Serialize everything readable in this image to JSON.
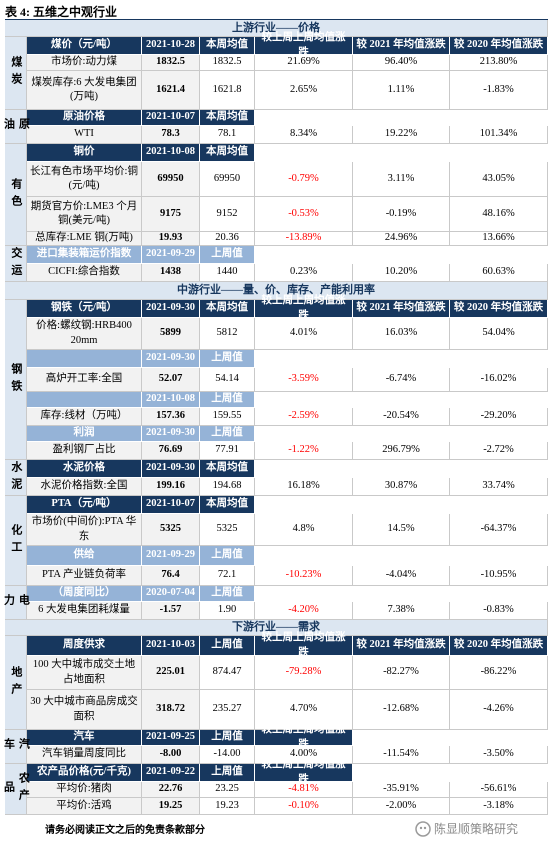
{
  "title": "表 4: 五维之中观行业",
  "negative_color": "#ff0000",
  "table": {
    "sections": [
      {
        "title": "上游行业——价格",
        "groups": [
          {
            "sector": "煤炭",
            "rows": [
              {
                "header": [
                  "煤价（元/吨）",
                  "2021-10-28",
                  "本周均值",
                  "较上周上周均值涨跌",
                  "较 2021 年均值涨跌",
                  "较 2020 年均值涨跌"
                ]
              },
              {
                "cells": [
                  "市场价:动力煤",
                  "1832.5",
                  "1832.5",
                  "21.69%",
                  "96.40%",
                  "213.80%"
                ]
              },
              {
                "cells": [
                  "煤炭库存:6 大发电集团(万吨)",
                  "1621.4",
                  "1621.8",
                  "2.65%",
                  "1.11%",
                  "-1.83%"
                ]
              }
            ]
          },
          {
            "sector": "原油",
            "rows": [
              {
                "header": [
                  "原油价格",
                  "2021-10-07",
                  "本周均值"
                ]
              },
              {
                "cells": [
                  "WTI",
                  "78.3",
                  "78.1",
                  "8.34%",
                  "19.22%",
                  "101.34%"
                ]
              }
            ]
          },
          {
            "sector": "有色",
            "rows": [
              {
                "header": [
                  "铜价",
                  "2021-10-08",
                  "本周均值"
                ]
              },
              {
                "cells": [
                  "长江有色市场平均价:铜(元/吨)",
                  "69950",
                  "69950",
                  "-0.79%",
                  "3.11%",
                  "43.05%"
                ]
              },
              {
                "cells": [
                  "期货官方价:LME3 个月铜(美元/吨)",
                  "9175",
                  "9152",
                  "-0.53%",
                  "-0.19%",
                  "48.16%"
                ]
              },
              {
                "cells": [
                  "总库存:LME 铜(万吨)",
                  "19.93",
                  "20.36",
                  "-13.89%",
                  "24.96%",
                  "13.66%"
                ]
              }
            ]
          },
          {
            "sector": "交运",
            "rows": [
              {
                "subheader": [
                  "进口集装箱运价指数",
                  "2021-09-29",
                  "上周值"
                ]
              },
              {
                "cells": [
                  "CICFI:综合指数",
                  "1438",
                  "1440",
                  "0.23%",
                  "10.20%",
                  "60.63%"
                ]
              }
            ]
          }
        ]
      },
      {
        "title": "中游行业——量、价、库存、产能利用率",
        "groups": [
          {
            "sector": "钢铁",
            "rows": [
              {
                "header": [
                  "钢铁（元/吨）",
                  "2021-09-30",
                  "本周均值",
                  "较上周上周均值涨跌",
                  "较 2021 年均值涨跌",
                  "较 2020 年均值涨跌"
                ]
              },
              {
                "cells": [
                  "价格:螺纹钢:HRB400 20mm",
                  "5899",
                  "5812",
                  "4.01%",
                  "16.03%",
                  "54.04%"
                ]
              },
              {
                "subheader": [
                  null,
                  "2021-09-30",
                  "上周值"
                ]
              },
              {
                "cells": [
                  "高炉开工率:全国",
                  "52.07",
                  "54.14",
                  "-3.59%",
                  "-6.74%",
                  "-16.02%"
                ]
              },
              {
                "subheader": [
                  null,
                  "2021-10-08",
                  "上周值"
                ]
              },
              {
                "cells": [
                  "库存:线材（万吨）",
                  "157.36",
                  "159.55",
                  "-2.59%",
                  "-20.54%",
                  "-29.20%"
                ]
              },
              {
                "subheader": [
                  "利润",
                  "2021-09-30",
                  "上周值"
                ]
              },
              {
                "cells": [
                  "盈利钢厂占比",
                  "76.69",
                  "77.91",
                  "-1.22%",
                  "296.79%",
                  "-2.72%"
                ]
              }
            ]
          },
          {
            "sector": "水泥",
            "rows": [
              {
                "header": [
                  "水泥价格",
                  "2021-09-30",
                  "本周均值"
                ]
              },
              {
                "cells": [
                  "水泥价格指数:全国",
                  "199.16",
                  "194.68",
                  "16.18%",
                  "30.87%",
                  "33.74%"
                ]
              }
            ]
          },
          {
            "sector": "化工",
            "rows": [
              {
                "header": [
                  "PTA（元/吨）",
                  "2021-10-07",
                  "本周均值"
                ]
              },
              {
                "cells": [
                  "市场价(中间价):PTA 华东",
                  "5325",
                  "5325",
                  "4.8%",
                  "14.5%",
                  "-64.37%"
                ]
              },
              {
                "subheader": [
                  "供给",
                  "2021-09-29",
                  "上周值"
                ]
              },
              {
                "cells": [
                  "PTA 产业链负荷率",
                  "76.4",
                  "72.1",
                  "-10.23%",
                  "-4.04%",
                  "-10.95%"
                ]
              }
            ]
          },
          {
            "sector": "电力",
            "rows": [
              {
                "subheader": [
                  "（周度同比）",
                  "2020-07-04",
                  "上周值"
                ]
              },
              {
                "cells": [
                  "6 大发电集团耗煤量",
                  "-1.57",
                  "1.90",
                  "-4.20%",
                  "7.38%",
                  "-0.83%"
                ]
              }
            ]
          }
        ]
      },
      {
        "title": "下游行业——需求",
        "groups": [
          {
            "sector": "地产",
            "rows": [
              {
                "header": [
                  "周度供求",
                  "2021-10-03",
                  "上周值",
                  "较上周上周均值涨跌",
                  "较 2021 年均值涨跌",
                  "较 2020 年均值涨跌"
                ]
              },
              {
                "cells": [
                  "100 大中城市成交土地占地面积",
                  "225.01",
                  "874.47",
                  "-79.28%",
                  "-82.27%",
                  "-86.22%"
                ]
              },
              {
                "cells": [
                  "30 大中城市商品房成交面积",
                  "318.72",
                  "235.27",
                  "4.70%",
                  "-12.68%",
                  "-4.26%"
                ]
              }
            ]
          },
          {
            "sector": "汽车",
            "rows": [
              {
                "header": [
                  "汽车",
                  "2021-09-25",
                  "上周值",
                  "较上周上周均值涨跌"
                ]
              },
              {
                "cells": [
                  "汽车销量周度同比",
                  "-8.00",
                  "-14.00",
                  "4.00%",
                  "-11.54%",
                  "-3.50%"
                ]
              }
            ]
          },
          {
            "sector": "农产品",
            "rows": [
              {
                "header": [
                  "农产品价格(元/千克)",
                  "2021-09-22",
                  "上周值",
                  "较上周上周均值涨跌"
                ]
              },
              {
                "cells": [
                  "平均价:猪肉",
                  "22.76",
                  "23.25",
                  "-4.81%",
                  "-35.91%",
                  "-56.61%"
                ]
              },
              {
                "cells": [
                  "平均价:活鸡",
                  "19.25",
                  "19.23",
                  "-0.10%",
                  "-2.00%",
                  "-3.18%"
                ]
              }
            ]
          }
        ]
      }
    ]
  },
  "footer": "请务必阅读正文之后的免责条款部分",
  "watermark": "陈显顺策略研究"
}
